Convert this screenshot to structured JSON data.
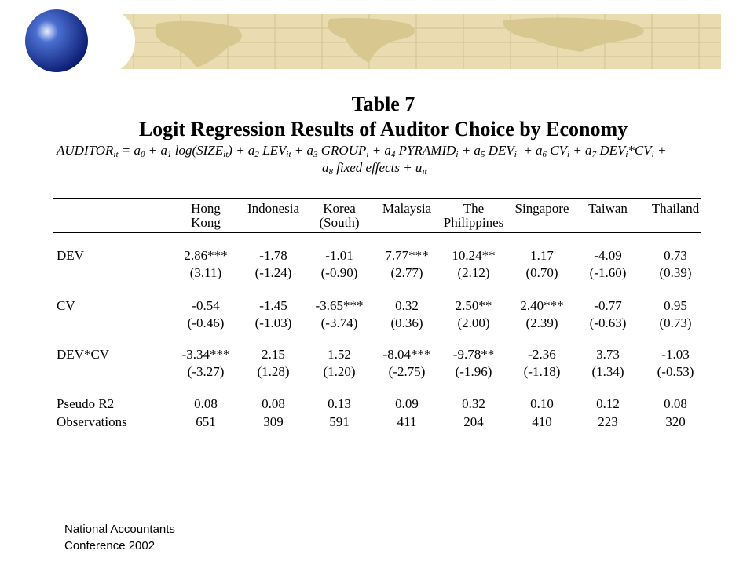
{
  "title": "Table 7",
  "subtitle": "Logit Regression Results of Auditor Choice by Economy",
  "equation": {
    "line1": [
      {
        "text": "AUDITOR",
        "sub": "it"
      },
      {
        "text": " = a",
        "sub": "0"
      },
      {
        "text": " + a",
        "sub": "1"
      },
      {
        "text": " log(SIZE",
        "sub": "it"
      },
      {
        "text": ") + a",
        "sub": "2"
      },
      {
        "text": " LEV",
        "sub": "it"
      },
      {
        "text": " + a",
        "sub": "3"
      },
      {
        "text": " GROUP",
        "sub": "i"
      },
      {
        "text": " + a",
        "sub": "4"
      },
      {
        "text": " PYRAMID",
        "sub": "i"
      },
      {
        "text": " + a",
        "sub": "5"
      },
      {
        "text": " DEV",
        "sub": "i"
      },
      {
        "text": "  + a",
        "sub": "6"
      },
      {
        "text": " CV",
        "sub": "i"
      },
      {
        "text": " + a",
        "sub": "7"
      },
      {
        "text": " DEV",
        "sub": "i"
      },
      {
        "text": "*CV",
        "sub": "i"
      },
      {
        "text": " +"
      }
    ],
    "line2": [
      {
        "text": "a",
        "sub": "8"
      },
      {
        "text": " fixed effects + u",
        "sub": "it"
      }
    ]
  },
  "table": {
    "headers": [
      [
        "Hong",
        "Kong"
      ],
      [
        "Indonesia"
      ],
      [
        "Korea",
        "(South)"
      ],
      [
        "Malaysia"
      ],
      [
        "The",
        "Philippines"
      ],
      [
        "Singapore"
      ],
      [
        "Taiwan"
      ],
      [
        "Thailand"
      ]
    ],
    "rows": [
      {
        "label": "DEV",
        "coef": [
          "2.86***",
          "-1.78",
          "-1.01",
          "7.77***",
          "10.24**",
          "1.17",
          "-4.09",
          "0.73"
        ],
        "t": [
          "(3.11)",
          "(-1.24)",
          "(-0.90)",
          "(2.77)",
          "(2.12)",
          "(0.70)",
          "(-1.60)",
          "(0.39)"
        ]
      },
      {
        "label": "CV",
        "coef": [
          "-0.54",
          "-1.45",
          "-3.65***",
          "0.32",
          "2.50**",
          "2.40***",
          "-0.77",
          "0.95"
        ],
        "t": [
          "(-0.46)",
          "(-1.03)",
          "(-3.74)",
          "(0.36)",
          "(2.00)",
          "(2.39)",
          "(-0.63)",
          "(0.73)"
        ]
      },
      {
        "label": "DEV*CV",
        "coef": [
          "-3.34***",
          "2.15",
          "1.52",
          "-8.04***",
          "-9.78**",
          "-2.36",
          "3.73",
          "-1.03"
        ],
        "t": [
          "(-3.27)",
          "(1.28)",
          "(1.20)",
          "(-2.75)",
          "(-1.96)",
          "(-1.18)",
          "(1.34)",
          "(-0.53)"
        ]
      },
      {
        "label": "Pseudo R2",
        "coef": [
          "0.08",
          "0.08",
          "0.13",
          "0.09",
          "0.32",
          "0.10",
          "0.12",
          "0.08"
        ]
      },
      {
        "label": "Observations",
        "coef": [
          "651",
          "309",
          "591",
          "411",
          "204",
          "410",
          "223",
          "320"
        ]
      }
    ]
  },
  "footer": [
    "National Accountants",
    "Conference 2002"
  ]
}
